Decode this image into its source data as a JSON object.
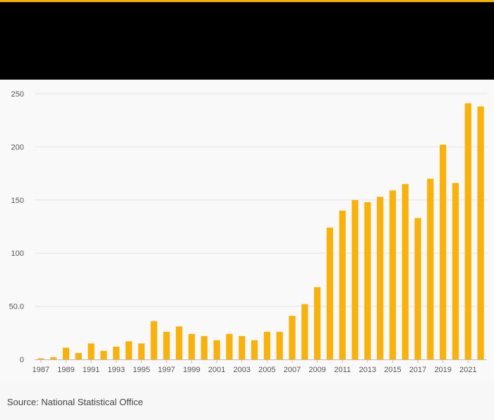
{
  "colors": {
    "accent": "#f5b000",
    "header": "#000000",
    "bar": "#f9b10b",
    "grid": "#e4e4e4"
  },
  "source": "Source: National Statistical Office",
  "chart_data": {
    "type": "bar",
    "title": "",
    "xlabel": "",
    "ylabel": "",
    "ylim": [
      0,
      250
    ],
    "yticks": [
      0,
      50,
      100,
      150,
      200,
      250
    ],
    "ytick_labels": [
      "0",
      "50.0",
      "100",
      "150",
      "200",
      "250"
    ],
    "categories": [
      "1987",
      "1988",
      "1989",
      "1990",
      "1991",
      "1992",
      "1993",
      "1994",
      "1995",
      "1996",
      "1997",
      "1998",
      "1999",
      "2000",
      "2001",
      "2002",
      "2003",
      "2004",
      "2005",
      "2006",
      "2007",
      "2008",
      "2009",
      "2010",
      "2011",
      "2012",
      "2013",
      "2014",
      "2015",
      "2016",
      "2017",
      "2018",
      "2019",
      "2020",
      "2021",
      "2022"
    ],
    "xtick_labels": [
      "1987",
      "1989",
      "1991",
      "1993",
      "1995",
      "1997",
      "1999",
      "2001",
      "2003",
      "2005",
      "2007",
      "2009",
      "2011",
      "2013",
      "2015",
      "2017",
      "2019",
      "2021"
    ],
    "values": [
      1,
      2,
      11,
      6,
      15,
      8,
      12,
      17,
      15,
      36,
      26,
      31,
      24,
      22,
      18,
      24,
      22,
      18,
      26,
      26,
      41,
      52,
      68,
      124,
      140,
      150,
      148,
      153,
      159,
      165,
      133,
      170,
      202,
      166,
      241,
      238
    ]
  }
}
